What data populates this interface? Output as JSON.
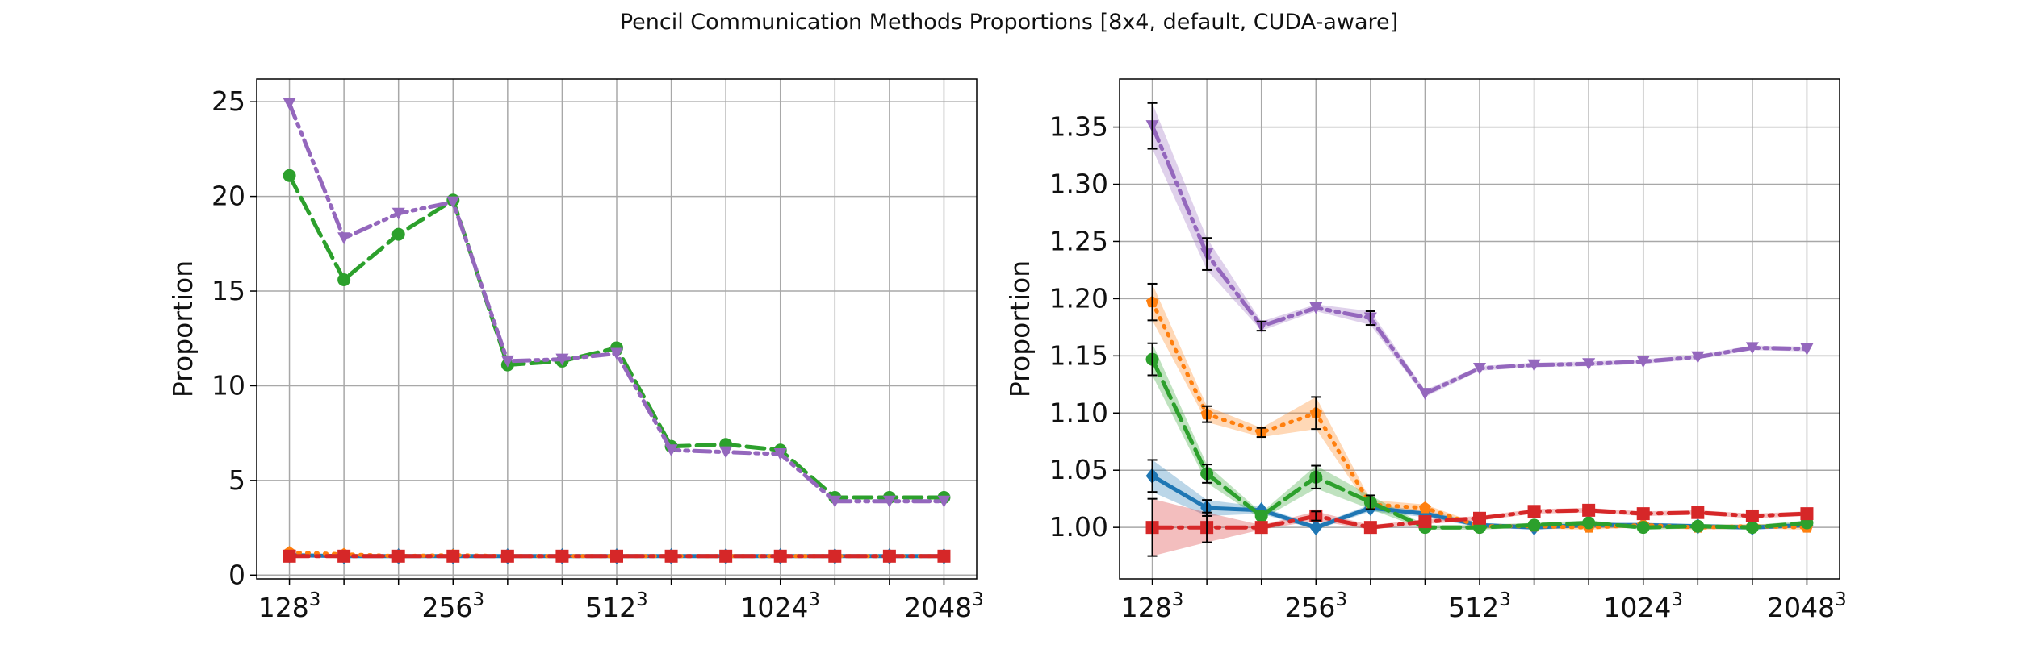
{
  "title": "Pencil Communication Methods Proportions [8x4, default, CUDA-aware]",
  "colors": {
    "blue": "#1f77b4",
    "orange": "#ff7f0e",
    "green": "#2ca02c",
    "red": "#d62728",
    "purple": "#9467bd"
  },
  "chart_data": [
    {
      "type": "line",
      "ylabel": "Proportion",
      "xlabel": "",
      "grid": true,
      "ylim": [
        -0.2,
        26.2
      ],
      "yticks": [
        0,
        5,
        10,
        15,
        20,
        25
      ],
      "x": [
        0,
        1,
        2,
        3,
        4,
        5,
        6,
        7,
        8,
        9,
        10,
        11,
        12
      ],
      "xlim": [
        -0.6,
        12.6
      ],
      "xticks": [
        {
          "pos": 0,
          "base": "128",
          "exp": "3"
        },
        {
          "pos": 3,
          "base": "256",
          "exp": "3"
        },
        {
          "pos": 6,
          "base": "512",
          "exp": "3"
        },
        {
          "pos": 9,
          "base": "1024",
          "exp": "3"
        },
        {
          "pos": 12,
          "base": "2048",
          "exp": "3"
        }
      ],
      "series": [
        {
          "color": "blue",
          "dash": "solid",
          "marker": "diamond",
          "values": [
            1.05,
            1.0,
            1.0,
            1.0,
            1.0,
            1.0,
            1.0,
            1.0,
            1.0,
            1.0,
            1.0,
            1.0,
            1.0
          ]
        },
        {
          "color": "orange",
          "dash": "dotted",
          "marker": "pentagon",
          "values": [
            1.2,
            1.1,
            1.0,
            1.05,
            1.0,
            1.0,
            1.0,
            1.0,
            1.0,
            1.0,
            1.0,
            1.0,
            1.0
          ]
        },
        {
          "color": "green",
          "dash": "dashed",
          "marker": "circle",
          "values": [
            21.1,
            15.6,
            18.0,
            19.8,
            11.1,
            11.3,
            12.0,
            6.8,
            6.9,
            6.6,
            4.1,
            4.1,
            4.1
          ]
        },
        {
          "color": "red",
          "dash": "dashdot",
          "marker": "square",
          "values": [
            1.0,
            1.0,
            1.0,
            1.0,
            1.0,
            1.0,
            1.0,
            1.0,
            1.0,
            1.0,
            1.0,
            1.0,
            1.0
          ]
        },
        {
          "color": "purple",
          "dash": "dashdotdot",
          "marker": "triangle-down",
          "values": [
            24.9,
            17.8,
            19.1,
            19.7,
            11.3,
            11.4,
            11.7,
            6.6,
            6.5,
            6.4,
            3.9,
            3.9,
            3.9
          ]
        }
      ]
    },
    {
      "type": "line",
      "ylabel": "Proportion",
      "xlabel": "",
      "grid": true,
      "ylim": [
        0.955,
        1.392
      ],
      "yticks": [
        1.0,
        1.05,
        1.1,
        1.15,
        1.2,
        1.25,
        1.3,
        1.35
      ],
      "yticklabels": [
        "1.00",
        "1.05",
        "1.10",
        "1.15",
        "1.20",
        "1.25",
        "1.30",
        "1.35"
      ],
      "x": [
        0,
        1,
        2,
        3,
        4,
        5,
        6,
        7,
        8,
        9,
        10,
        11,
        12
      ],
      "xlim": [
        -0.6,
        12.6
      ],
      "xticks": [
        {
          "pos": 0,
          "base": "128",
          "exp": "3"
        },
        {
          "pos": 3,
          "base": "256",
          "exp": "3"
        },
        {
          "pos": 6,
          "base": "512",
          "exp": "3"
        },
        {
          "pos": 9,
          "base": "1024",
          "exp": "3"
        },
        {
          "pos": 12,
          "base": "2048",
          "exp": "3"
        }
      ],
      "series": [
        {
          "color": "blue",
          "dash": "solid",
          "marker": "diamond",
          "values": [
            1.045,
            1.017,
            1.015,
            1.0,
            1.017,
            1.012,
            1.002,
            1.0,
            1.002,
            1.002,
            1.001,
            1.0,
            1.002
          ],
          "err": [
            0.014,
            0.007,
            0.003,
            0.002,
            0.003,
            0.003,
            0.002,
            0.002,
            0.002,
            0.002,
            0.002,
            0.002,
            0.002
          ]
        },
        {
          "color": "orange",
          "dash": "dotted",
          "marker": "pentagon",
          "values": [
            1.197,
            1.099,
            1.083,
            1.1,
            1.02,
            1.017,
            1.001,
            1.001,
            1.0,
            1.002,
            1.0,
            1.001,
            1.0
          ],
          "err": [
            0.016,
            0.007,
            0.004,
            0.014,
            0.004,
            0.003,
            0.002,
            0.002,
            0.002,
            0.002,
            0.002,
            0.002,
            0.002
          ]
        },
        {
          "color": "green",
          "dash": "dashed",
          "marker": "circle",
          "values": [
            1.147,
            1.047,
            1.01,
            1.044,
            1.022,
            1.0,
            1.0,
            1.002,
            1.004,
            1.0,
            1.001,
            1.0,
            1.004
          ],
          "err": [
            0.014,
            0.008,
            0.003,
            0.01,
            0.006,
            0.002,
            0.002,
            0.002,
            0.002,
            0.002,
            0.002,
            0.002,
            0.002
          ]
        },
        {
          "color": "red",
          "dash": "dashdot",
          "marker": "square",
          "values": [
            1.0,
            1.0,
            1.0,
            1.01,
            1.0,
            1.005,
            1.008,
            1.014,
            1.015,
            1.012,
            1.013,
            1.01,
            1.012
          ],
          "err": [
            0.025,
            0.013,
            0.002,
            0.004,
            0.002,
            0.002,
            0.002,
            0.002,
            0.002,
            0.002,
            0.002,
            0.002,
            0.002
          ]
        },
        {
          "color": "purple",
          "dash": "dashdotdot",
          "marker": "triangle-down",
          "values": [
            1.351,
            1.239,
            1.176,
            1.192,
            1.183,
            1.117,
            1.139,
            1.142,
            1.143,
            1.145,
            1.149,
            1.157,
            1.156
          ],
          "err": [
            0.02,
            0.014,
            0.004,
            0.003,
            0.006,
            0.003,
            0.002,
            0.002,
            0.002,
            0.002,
            0.002,
            0.002,
            0.002
          ]
        }
      ]
    }
  ]
}
